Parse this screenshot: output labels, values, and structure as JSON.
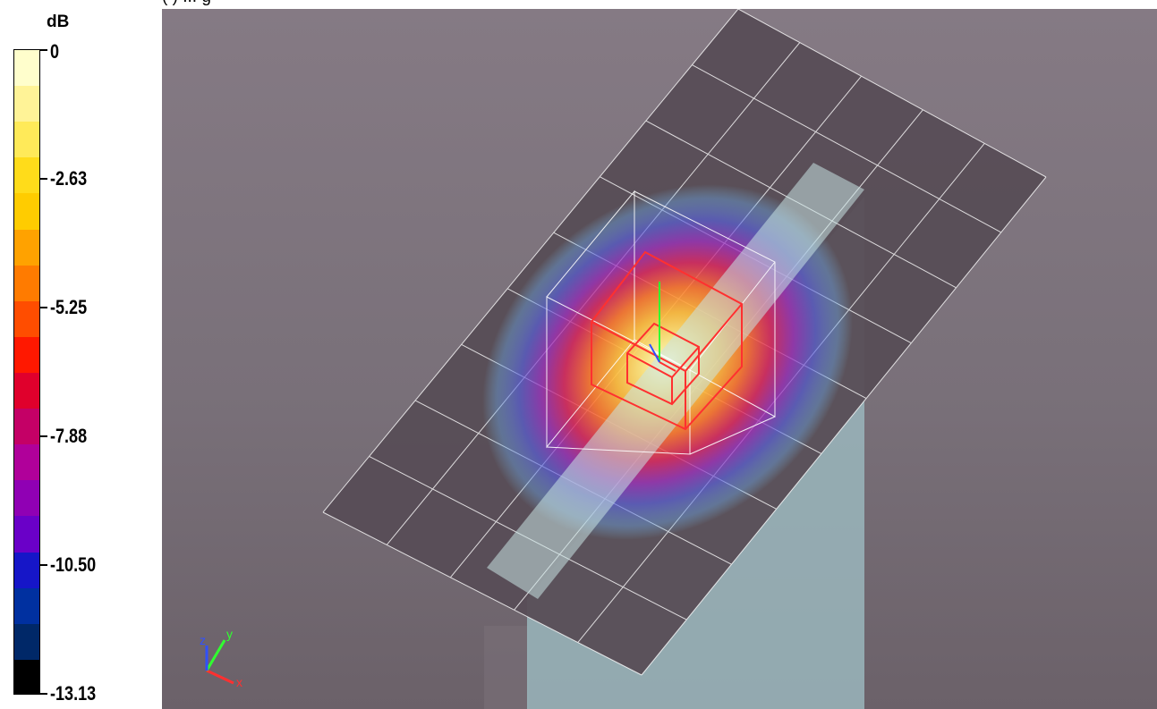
{
  "header": {
    "title_fragment": "(   ) ...   g"
  },
  "legend": {
    "unit": "dB",
    "ticks": [
      {
        "label": "0",
        "value": 0
      },
      {
        "label": "-2.63",
        "value": -2.63
      },
      {
        "label": "-5.25",
        "value": -5.25
      },
      {
        "label": "-7.88",
        "value": -7.88
      },
      {
        "label": "-10.50",
        "value": -10.5
      },
      {
        "label": "-13.13",
        "value": -13.13
      }
    ],
    "colors": [
      "#fffecc",
      "#fff397",
      "#ffea59",
      "#ffdc1a",
      "#ffcc00",
      "#ffa200",
      "#ff7b00",
      "#ff4d00",
      "#ff1800",
      "#e0002c",
      "#c40066",
      "#b0009a",
      "#9000b4",
      "#6a00c8",
      "#1616c8",
      "#0030a0",
      "#002868",
      "#000000"
    ]
  },
  "viewport": {
    "background_top": "#857a84",
    "background_bottom": "#6b6169",
    "axis_labels": {
      "x": "x",
      "y": "y",
      "z": "z"
    },
    "axis_colors": {
      "x": "#ff3030",
      "y": "#30ff30",
      "z": "#3050ff"
    }
  }
}
